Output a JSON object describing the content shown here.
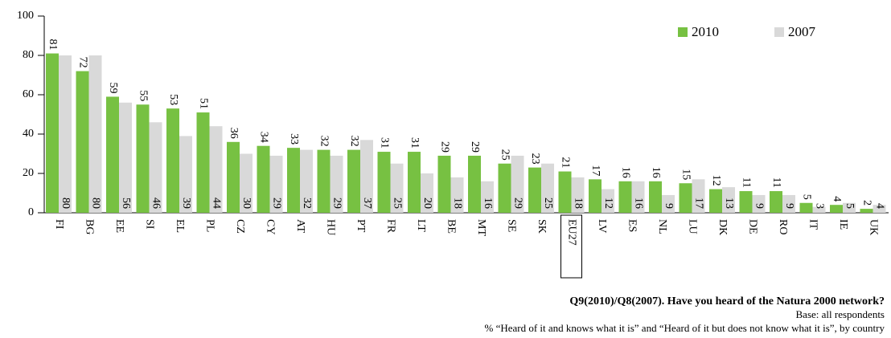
{
  "chart_data": {
    "type": "bar",
    "categories": [
      "FI",
      "BG",
      "EE",
      "SI",
      "EL",
      "PL",
      "CZ",
      "CY",
      "AT",
      "HU",
      "PT",
      "FR",
      "LT",
      "BE",
      "MT",
      "SE",
      "SK",
      "EU27",
      "LV",
      "ES",
      "NL",
      "LU",
      "DK",
      "DE",
      "RO",
      "IT",
      "IE",
      "UK"
    ],
    "series": [
      {
        "name": "2010",
        "color": "#77c142",
        "values": [
          81,
          72,
          59,
          55,
          53,
          51,
          36,
          34,
          33,
          32,
          32,
          31,
          31,
          29,
          29,
          25,
          23,
          21,
          17,
          16,
          16,
          15,
          12,
          11,
          11,
          5,
          4,
          2
        ]
      },
      {
        "name": "2007",
        "color": "#d9d9d9",
        "values": [
          80,
          80,
          56,
          46,
          39,
          44,
          30,
          29,
          32,
          29,
          37,
          25,
          20,
          18,
          16,
          29,
          25,
          18,
          12,
          16,
          9,
          17,
          13,
          9,
          9,
          3,
          5,
          4
        ]
      }
    ],
    "ylim": [
      0,
      100
    ],
    "yticks": [
      0,
      20,
      40,
      60,
      80,
      100
    ],
    "grid": false,
    "legend": "top-right",
    "highlight": "EU27",
    "notes": [
      "Q9(2010)/Q8(2007). Have you heard of the Natura 2000 network?",
      "Base: all respondents",
      "% “Heard of it and knows what it is” and “Heard of it but does not know what it is”, by country"
    ]
  }
}
